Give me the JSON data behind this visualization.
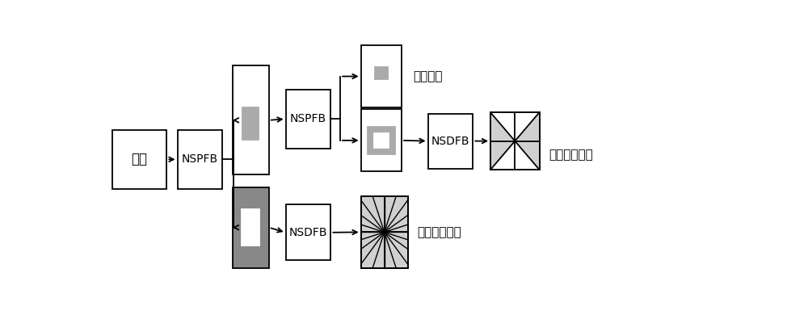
{
  "bg_color": "#ffffff",
  "gray_light": "#d0d0d0",
  "gray_dark": "#888888",
  "gray_med": "#aaaaaa",
  "labels": {
    "image": "图像",
    "nspfb1": "NSPFB",
    "nspfb2": "NSPFB",
    "nsdfb1": "NSDFB",
    "nsdfb2": "NSDFB",
    "low_band": "低频子带",
    "high_band1": "高频方向子带",
    "high_band2": "高频方向子带"
  },
  "fig_width": 10.0,
  "fig_height": 3.9
}
